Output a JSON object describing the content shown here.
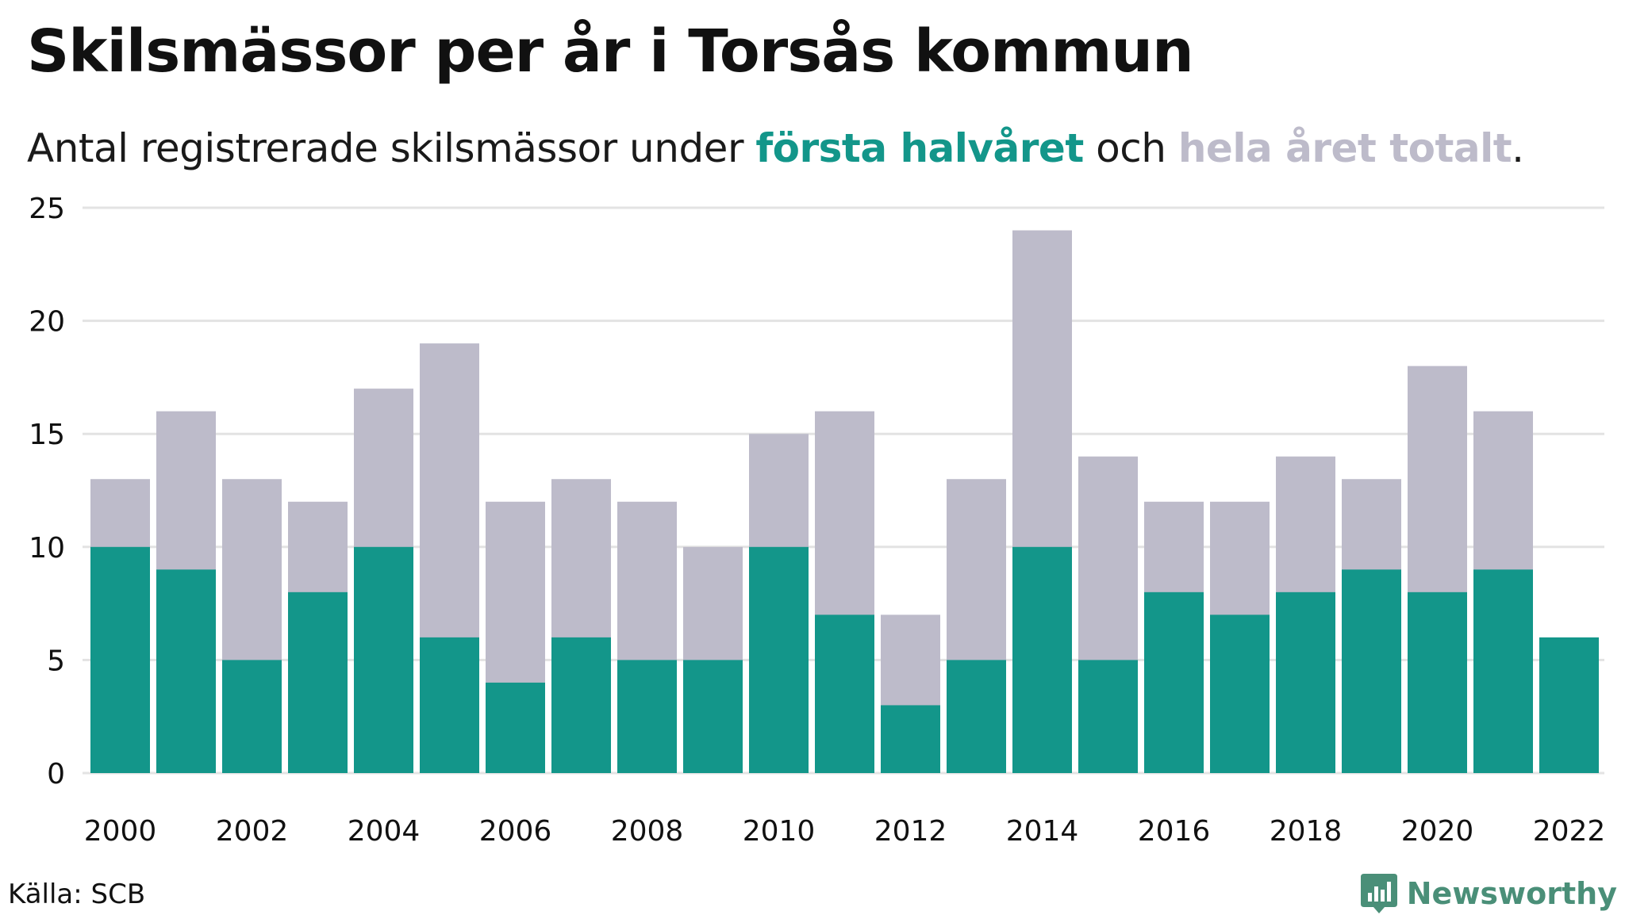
{
  "header": {
    "title": "Skilsmässor per år i Torsås kommun",
    "subtitle_prefix": "Antal registrerade skilsmässor under ",
    "subtitle_highlight_1": "första halvåret",
    "subtitle_middle": " och ",
    "subtitle_highlight_2": "hela året totalt",
    "subtitle_suffix": "."
  },
  "footer": {
    "source": "Källa: SCB",
    "brand": "Newsworthy",
    "brand_icon": "newsworthy-logo-icon"
  },
  "colors": {
    "first_half": "#13968a",
    "full_year": "#bdbbca",
    "grid": "#e3e3e3",
    "brand": "#4a8f78"
  },
  "chart_data": {
    "type": "bar",
    "stacked_overlay": true,
    "x": [
      2000,
      2001,
      2002,
      2003,
      2004,
      2005,
      2006,
      2007,
      2008,
      2009,
      2010,
      2011,
      2012,
      2013,
      2014,
      2015,
      2016,
      2017,
      2018,
      2019,
      2020,
      2021,
      2022
    ],
    "x_tick_labels": [
      "2000",
      "2002",
      "2004",
      "2006",
      "2008",
      "2010",
      "2012",
      "2014",
      "2016",
      "2018",
      "2020",
      "2022"
    ],
    "series": [
      {
        "name": "hela året totalt",
        "values": [
          13,
          16,
          13,
          12,
          17,
          19,
          12,
          13,
          12,
          10,
          15,
          16,
          7,
          13,
          24,
          14,
          12,
          12,
          14,
          13,
          18,
          16,
          null
        ]
      },
      {
        "name": "första halvåret",
        "values": [
          10,
          9,
          5,
          8,
          10,
          6,
          4,
          6,
          5,
          5,
          10,
          7,
          3,
          5,
          10,
          5,
          8,
          7,
          8,
          9,
          8,
          9,
          6
        ]
      }
    ],
    "y_ticks": [
      0,
      5,
      10,
      15,
      20,
      25
    ],
    "ylim": [
      0,
      25
    ],
    "grid": true
  }
}
